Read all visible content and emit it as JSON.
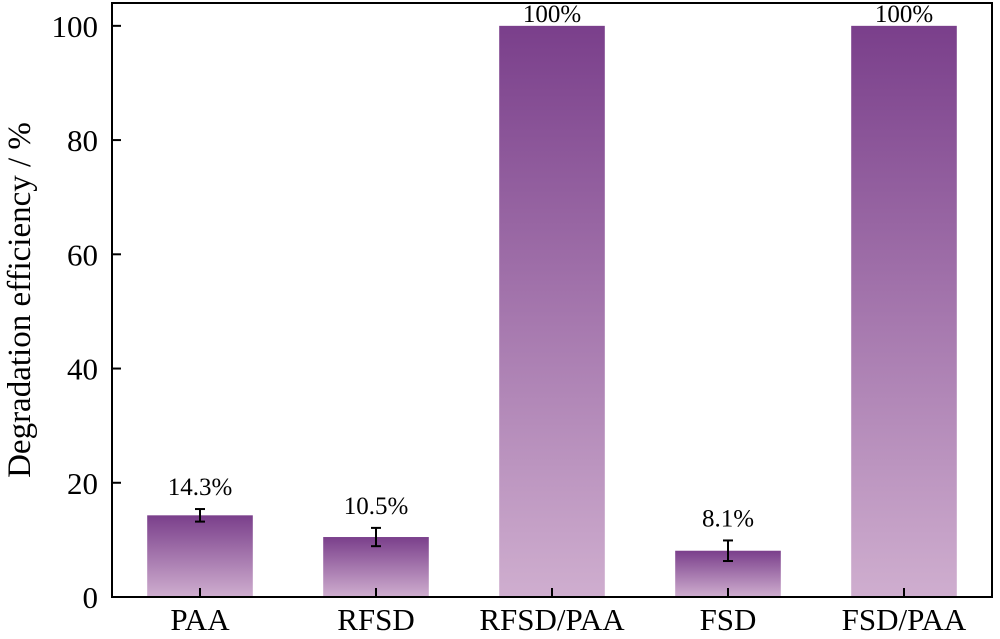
{
  "chart_data": {
    "type": "bar",
    "title": "",
    "xlabel": "",
    "ylabel": "Degradation efficiency / %",
    "ylim": [
      0,
      104
    ],
    "yticks": [
      0,
      20,
      40,
      60,
      80,
      100
    ],
    "grid": false,
    "categories": [
      "PAA",
      "RFSD",
      "RFSD/PAA",
      "FSD",
      "FSD/PAA"
    ],
    "values": [
      14.3,
      10.5,
      100,
      8.1,
      100
    ],
    "errors": [
      1.1,
      1.6,
      0,
      1.8,
      0
    ],
    "data_labels": [
      "14.3%",
      "10.5%",
      "100%",
      "8.1%",
      "100%"
    ],
    "colors": {
      "bar_top": "#7a3f8b",
      "bar_bottom": "#cfaecf",
      "axis": "#000000"
    }
  }
}
